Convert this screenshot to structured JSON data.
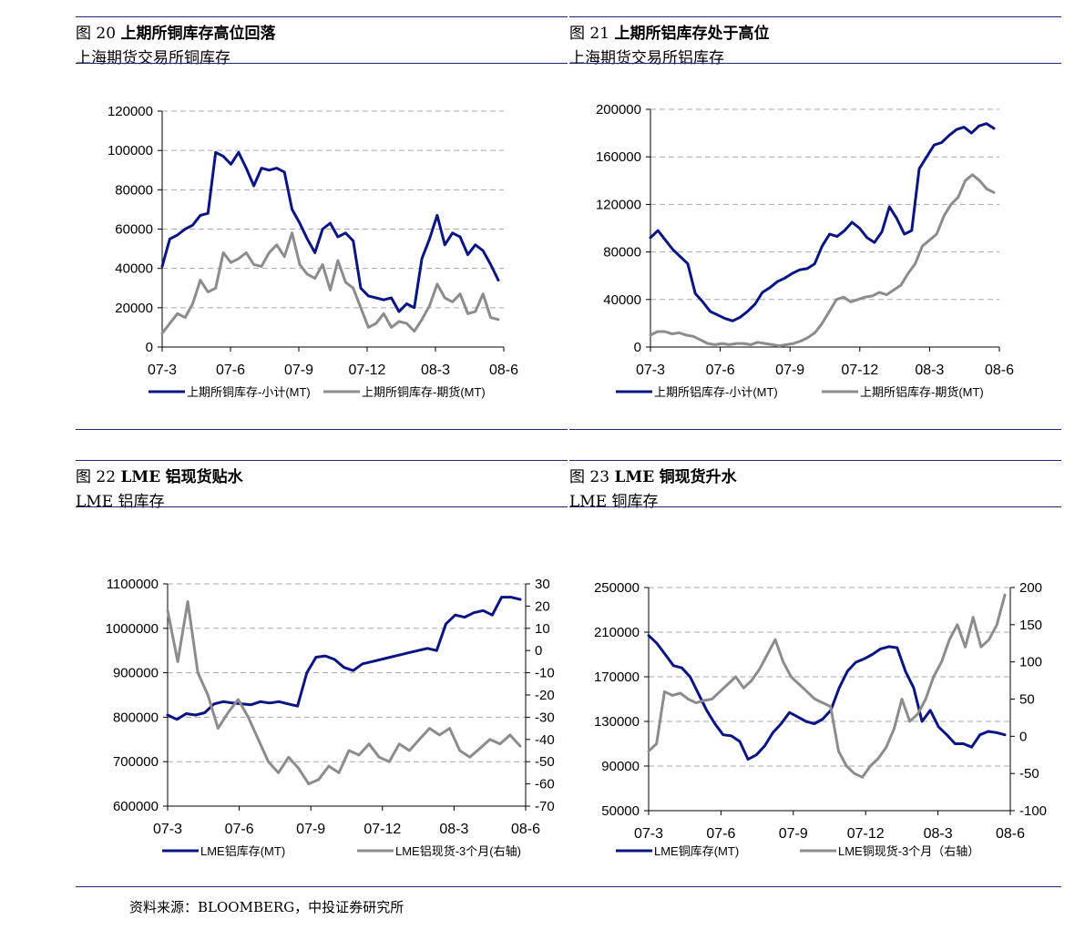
{
  "colors": {
    "rule": "#1f2a6e",
    "series_primary": "#0b1582",
    "series_secondary": "#8c8c8c",
    "grid": "#aaaaaa"
  },
  "panels": [
    {
      "fig": "图 20",
      "title": "上期所铜库存高位回落",
      "subtitle": "上海期货交易所铜库存"
    },
    {
      "fig": "图 21",
      "title": "上期所铝库存处于高位",
      "subtitle": "上海期货交易所铝库存"
    },
    {
      "fig": "图 22",
      "title_bold": "LME",
      "title": "铝现货贴水",
      "subtitle": "LME 铝库存"
    },
    {
      "fig": "图 23",
      "title_bold": "LME",
      "title": "铜现货升水",
      "subtitle": "LME 铜库存"
    }
  ],
  "source": "资料来源：BLOOMBERG，中投证券研究所",
  "chart_data": [
    {
      "type": "line",
      "x_ticks": [
        "07-3",
        "07-6",
        "07-9",
        "07-12",
        "08-3",
        "08-6"
      ],
      "y_ticks": [
        "0",
        "20000",
        "40000",
        "60000",
        "80000",
        "100000",
        "120000"
      ],
      "ylim": [
        0,
        120000
      ],
      "grid": true,
      "legend": "bottom",
      "series": [
        {
          "name": "上期所铜库存-小计(MT)",
          "values": [
            41000,
            55000,
            57000,
            60000,
            62000,
            67000,
            68000,
            99000,
            97000,
            93000,
            99000,
            91000,
            82000,
            91000,
            90000,
            91000,
            89000,
            70000,
            63000,
            55000,
            48000,
            60000,
            63000,
            56000,
            58000,
            54000,
            30000,
            26000,
            25000,
            24000,
            25000,
            18000,
            22000,
            20000,
            45000,
            55000,
            67000,
            52000,
            58000,
            56000,
            47000,
            52000,
            49000,
            42000,
            34000
          ]
        },
        {
          "name": "上期所铜库存-期货(MT)",
          "values": [
            7000,
            12000,
            17000,
            15000,
            22000,
            34000,
            28000,
            30000,
            48000,
            43000,
            45000,
            48000,
            42000,
            41000,
            48000,
            52000,
            46000,
            58000,
            42000,
            37000,
            35000,
            42000,
            29000,
            44000,
            33000,
            30000,
            20000,
            10000,
            12000,
            17000,
            10000,
            13000,
            12000,
            8000,
            14000,
            21000,
            32000,
            25000,
            23000,
            27000,
            17000,
            18000,
            27000,
            15000,
            14000
          ]
        }
      ]
    },
    {
      "type": "line",
      "x_ticks": [
        "07-3",
        "07-6",
        "07-9",
        "07-12",
        "08-3",
        "08-6"
      ],
      "y_ticks": [
        "0",
        "40000",
        "80000",
        "120000",
        "160000",
        "200000"
      ],
      "ylim": [
        0,
        200000
      ],
      "grid": true,
      "legend": "bottom",
      "series": [
        {
          "name": "上期所铝库存-小计(MT)",
          "values": [
            92000,
            98000,
            90000,
            82000,
            76000,
            70000,
            45000,
            38000,
            30000,
            27000,
            24000,
            22000,
            25000,
            30000,
            36000,
            46000,
            50000,
            55000,
            58000,
            62000,
            65000,
            66000,
            70000,
            85000,
            95000,
            93000,
            98000,
            105000,
            100000,
            92000,
            88000,
            97000,
            118000,
            108000,
            95000,
            98000,
            150000,
            160000,
            170000,
            172000,
            178000,
            183000,
            185000,
            180000,
            186000,
            188000,
            184000
          ]
        },
        {
          "name": "上期所铝库存-期货(MT)",
          "values": [
            10000,
            13000,
            13000,
            11000,
            12000,
            10000,
            9000,
            6000,
            3000,
            2000,
            3000,
            2000,
            3000,
            3000,
            2000,
            4000,
            3000,
            2000,
            1000,
            2000,
            3000,
            5000,
            8000,
            12000,
            20000,
            30000,
            40000,
            42000,
            38000,
            40000,
            42000,
            43000,
            46000,
            44000,
            48000,
            52000,
            62000,
            70000,
            85000,
            90000,
            95000,
            110000,
            120000,
            126000,
            140000,
            145000,
            140000,
            133000,
            130000
          ]
        }
      ]
    },
    {
      "type": "line",
      "x_ticks": [
        "07-3",
        "07-6",
        "07-9",
        "07-12",
        "08-3",
        "08-6"
      ],
      "y_left_ticks": [
        "600000",
        "700000",
        "800000",
        "900000",
        "1000000",
        "1100000"
      ],
      "ylim_left": [
        600000,
        1100000
      ],
      "y_right_ticks": [
        "-70",
        "-60",
        "-50",
        "-40",
        "-30",
        "-20",
        "-10",
        "0",
        "10",
        "20",
        "30"
      ],
      "ylim_right": [
        -70,
        30
      ],
      "grid": true,
      "legend": "bottom",
      "series": [
        {
          "name": "LME铝库存(MT)",
          "axis": "left",
          "values": [
            805000,
            795000,
            808000,
            805000,
            810000,
            830000,
            835000,
            832000,
            830000,
            828000,
            835000,
            832000,
            835000,
            830000,
            825000,
            900000,
            935000,
            938000,
            930000,
            912000,
            905000,
            920000,
            925000,
            930000,
            935000,
            940000,
            945000,
            950000,
            955000,
            950000,
            1010000,
            1030000,
            1025000,
            1035000,
            1040000,
            1030000,
            1070000,
            1070000,
            1065000
          ]
        },
        {
          "name": "LME铝现货-3个月(右轴)",
          "axis": "right",
          "values": [
            18,
            -5,
            22,
            -10,
            -20,
            -35,
            -28,
            -22,
            -30,
            -40,
            -50,
            -55,
            -48,
            -53,
            -60,
            -58,
            -52,
            -55,
            -45,
            -47,
            -42,
            -48,
            -50,
            -42,
            -45,
            -40,
            -35,
            -38,
            -35,
            -45,
            -48,
            -44,
            -40,
            -42,
            -38,
            -43
          ]
        }
      ]
    },
    {
      "type": "line",
      "x_ticks": [
        "07-3",
        "07-6",
        "07-9",
        "07-12",
        "08-3",
        "08-6"
      ],
      "y_left_ticks": [
        "50000",
        "90000",
        "130000",
        "170000",
        "210000",
        "250000"
      ],
      "ylim_left": [
        50000,
        250000
      ],
      "y_right_ticks": [
        "-100",
        "-50",
        "0",
        "50",
        "100",
        "150",
        "200"
      ],
      "ylim_right": [
        -100,
        200
      ],
      "grid": true,
      "legend": "bottom",
      "series": [
        {
          "name": "LME铜库存(MT)",
          "axis": "left",
          "values": [
            207000,
            200000,
            190000,
            180000,
            178000,
            170000,
            155000,
            140000,
            128000,
            118000,
            117000,
            112000,
            96000,
            100000,
            108000,
            120000,
            128000,
            138000,
            134000,
            130000,
            128000,
            132000,
            140000,
            160000,
            175000,
            183000,
            186000,
            190000,
            195000,
            197000,
            196000,
            175000,
            160000,
            130000,
            140000,
            125000,
            118000,
            110000,
            110000,
            107000,
            118000,
            121000,
            120000,
            118000
          ]
        },
        {
          "name": "LME铜现货-3个月（右轴）",
          "axis": "right",
          "values": [
            -20,
            -10,
            60,
            55,
            58,
            50,
            45,
            48,
            50,
            60,
            70,
            80,
            65,
            75,
            90,
            110,
            130,
            100,
            80,
            70,
            60,
            50,
            45,
            40,
            -20,
            -40,
            -50,
            -55,
            -40,
            -30,
            -15,
            10,
            50,
            20,
            30,
            50,
            80,
            100,
            130,
            150,
            120,
            160,
            120,
            130,
            150,
            190
          ]
        }
      ]
    }
  ]
}
